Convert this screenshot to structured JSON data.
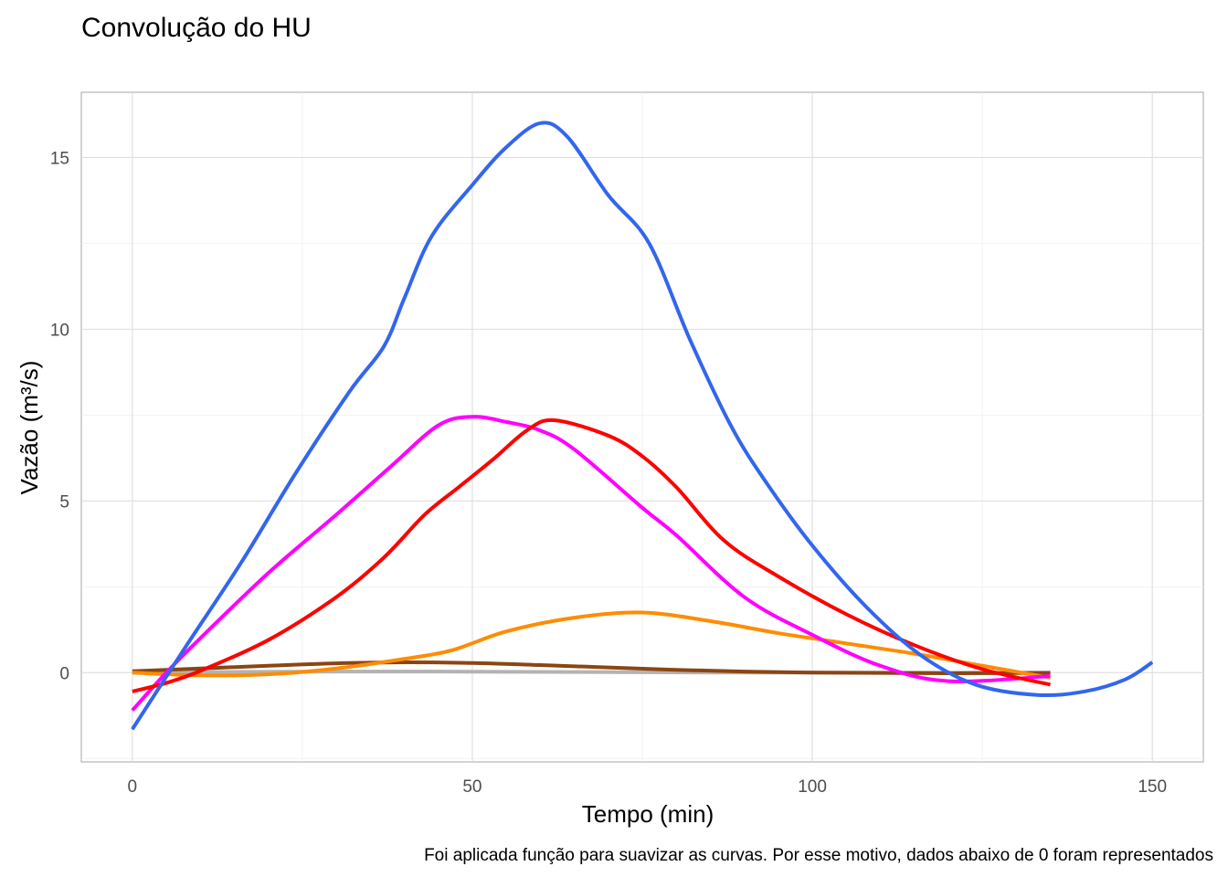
{
  "chart_data": {
    "type": "line",
    "title": "Convolução do HU",
    "xlabel": "Tempo (min)",
    "ylabel": "Vazão (m³/s)",
    "caption": "Foi aplicada função para suavizar as curvas. Por esse motivo, dados abaixo de 0 foram representados",
    "xlim": [
      -7.5,
      157.5
    ],
    "ylim": [
      -2.6,
      16.9
    ],
    "x_ticks": [
      0,
      50,
      100,
      150
    ],
    "x_tick_labels": [
      "0",
      "50",
      "100",
      "150"
    ],
    "y_ticks": [
      0,
      5,
      10,
      15
    ],
    "y_tick_labels": [
      "0",
      "5",
      "10",
      "15"
    ],
    "grid": true,
    "legend": "none",
    "series": [
      {
        "color": "#b3b3b3",
        "x": [
          0,
          15,
          30,
          45,
          60,
          75,
          90,
          105,
          120,
          135
        ],
        "y": [
          0,
          0.02,
          0.03,
          0.03,
          0.02,
          0.01,
          0,
          0,
          0,
          0
        ]
      },
      {
        "color": "#8b4513",
        "x": [
          0,
          10,
          20,
          30,
          40,
          50,
          60,
          70,
          80,
          90,
          100,
          110,
          120,
          135
        ],
        "y": [
          0.04,
          0.12,
          0.2,
          0.27,
          0.3,
          0.28,
          0.22,
          0.15,
          0.08,
          0.03,
          0.0,
          -0.01,
          -0.02,
          -0.01
        ]
      },
      {
        "color": "#ff8c00",
        "x": [
          0,
          10,
          20,
          30,
          40,
          47,
          55,
          65,
          75,
          85,
          95,
          105,
          115,
          125,
          135
        ],
        "y": [
          0.0,
          -0.08,
          -0.05,
          0.12,
          0.4,
          0.65,
          1.2,
          1.6,
          1.75,
          1.5,
          1.15,
          0.85,
          0.55,
          0.2,
          -0.15
        ]
      },
      {
        "color": "#ff00ff",
        "x": [
          0,
          5,
          10,
          20,
          30,
          38,
          45,
          50,
          55,
          60,
          65,
          75,
          80,
          90,
          100,
          110,
          120,
          135
        ],
        "y": [
          -1.1,
          0.0,
          1.0,
          2.9,
          4.6,
          6.0,
          7.2,
          7.45,
          7.3,
          7.05,
          6.5,
          4.8,
          4.0,
          2.2,
          1.1,
          0.2,
          -0.25,
          -0.1
        ]
      },
      {
        "color": "#ff0000",
        "x": [
          0,
          5,
          10,
          20,
          30,
          37,
          43,
          48,
          53,
          58,
          62,
          70,
          75,
          80,
          87,
          95,
          105,
          115,
          125,
          135
        ],
        "y": [
          -0.55,
          -0.3,
          0.05,
          0.95,
          2.2,
          3.35,
          4.6,
          5.4,
          6.2,
          7.05,
          7.35,
          6.9,
          6.3,
          5.4,
          3.85,
          2.8,
          1.7,
          0.8,
          0.1,
          -0.35
        ]
      },
      {
        "color": "#3366ee",
        "x": [
          0,
          8,
          16,
          24,
          32,
          37,
          40,
          44,
          50,
          55,
          60,
          64,
          70,
          76,
          82,
          88,
          93,
          100,
          108,
          116,
          124,
          133,
          140,
          146,
          150
        ],
        "y": [
          -1.65,
          0.8,
          3.2,
          5.8,
          8.2,
          9.5,
          10.9,
          12.7,
          14.2,
          15.3,
          16.0,
          15.6,
          13.9,
          12.5,
          9.7,
          7.2,
          5.6,
          3.7,
          1.9,
          0.5,
          -0.35,
          -0.65,
          -0.55,
          -0.2,
          0.3
        ]
      }
    ]
  }
}
